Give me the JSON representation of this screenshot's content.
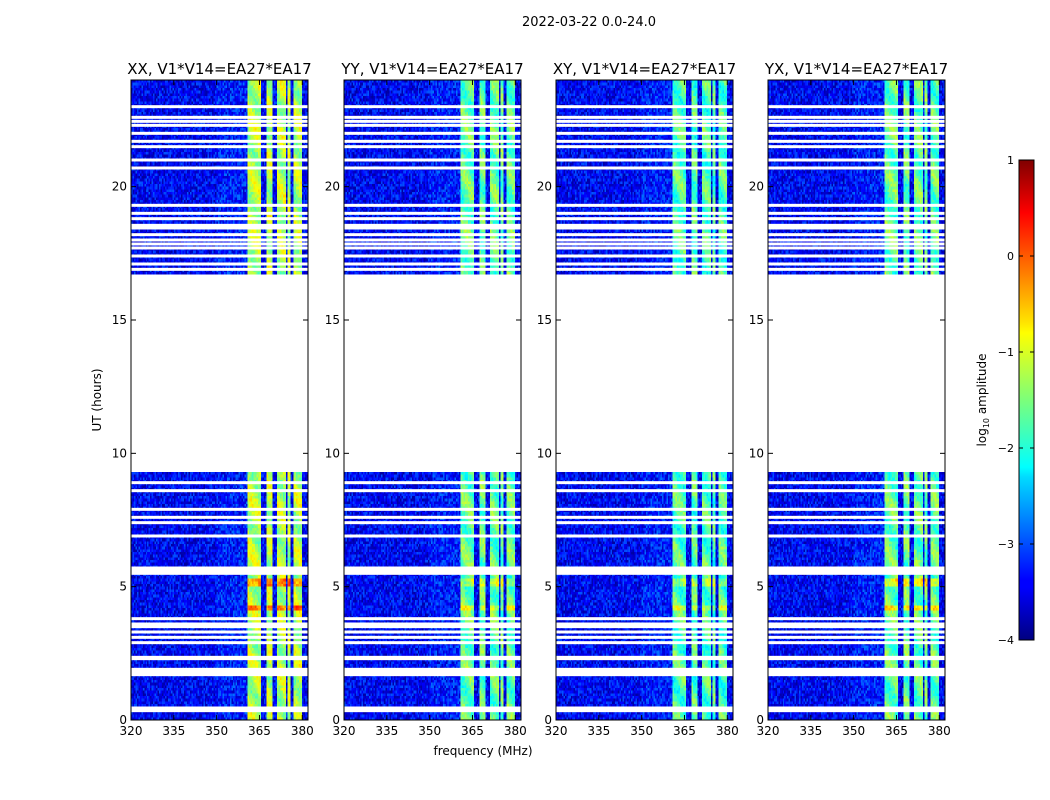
{
  "chart_data": {
    "type": "heatmap",
    "suptitle": "2022-03-22 0.0-24.0",
    "xlabel": "frequency (MHz)",
    "ylabel": "UT (hours)",
    "xlim": [
      320,
      382
    ],
    "ylim": [
      0,
      24
    ],
    "x_ticks": [
      320,
      335,
      350,
      365,
      380
    ],
    "y_ticks": [
      0,
      5,
      10,
      15,
      20
    ],
    "panels": [
      {
        "title": "XX, V1*V14=EA27*EA17",
        "rfi_level": -1.0,
        "burst_level": 0.0
      },
      {
        "title": "YY, V1*V14=EA27*EA17",
        "rfi_level": -1.4,
        "burst_level": -0.9
      },
      {
        "title": "XY, V1*V14=EA27*EA17",
        "rfi_level": -1.5,
        "burst_level": -1.0
      },
      {
        "title": "YX, V1*V14=EA27*EA17",
        "rfi_level": -1.4,
        "burst_level": -0.6
      }
    ],
    "data_blocks_hours": [
      [
        0,
        9.3
      ],
      [
        16.7,
        24
      ]
    ],
    "gap_hours": [
      [
        9.3,
        16.7
      ]
    ],
    "flagged_rows_hours": [
      0.35,
      0.45,
      1.7,
      1.8,
      1.9,
      2.3,
      2.35,
      2.9,
      3.1,
      3.3,
      3.5,
      3.6,
      3.8,
      5.5,
      5.6,
      5.7,
      6.9,
      7.4,
      7.6,
      7.9,
      8.6,
      8.9,
      16.9,
      17.1,
      17.4,
      17.7,
      17.85,
      18.0,
      18.2,
      18.45,
      18.55,
      18.8,
      19.0,
      19.3,
      20.7,
      21.0,
      21.5,
      21.7,
      22.0,
      22.3,
      22.45,
      22.6,
      23.0
    ],
    "rfi_channels_mhz": [
      [
        361,
        365.5
      ],
      [
        367.5,
        369.5
      ],
      [
        371,
        374
      ],
      [
        375,
        375.8
      ],
      [
        377,
        380
      ]
    ],
    "burst_hours": [
      [
        4.05,
        4.35
      ],
      [
        5.05,
        5.35
      ]
    ],
    "colorbar": {
      "label": "log10 amplitude",
      "label_main": "log",
      "label_sub": "10",
      "label_rest": " amplitude",
      "range": [
        -4,
        1
      ],
      "ticks": [
        1,
        0,
        -1,
        -2,
        -3,
        -4
      ],
      "tick_labels": [
        "1",
        "0",
        "−1",
        "−2",
        "−3",
        "−4"
      ],
      "colormap": "jet"
    }
  }
}
